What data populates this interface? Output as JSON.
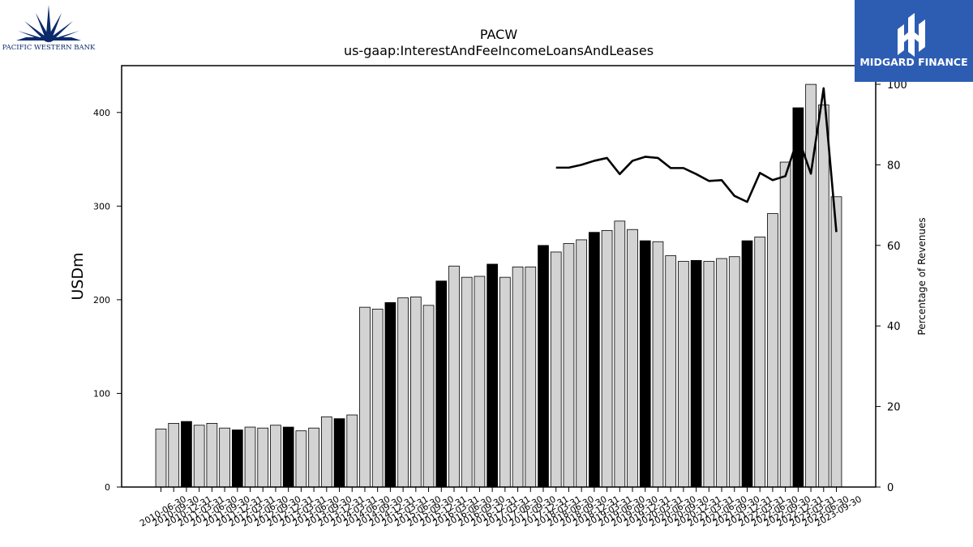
{
  "logos": {
    "left_text": "PACIFIC WESTERN BANK",
    "right_text": "MIDGARD FINANCE",
    "left_color": "#0a2a6b",
    "right_bg": "#2d5db3"
  },
  "chart_data": {
    "type": "bar",
    "title": "PACW",
    "subtitle": "us-gaap:InterestAndFeeIncomeLoansAndLeases",
    "ylabel": "USDm",
    "y2label": "Percentage of Revenues",
    "ylim": [
      0,
      450
    ],
    "y2lim": [
      0,
      100
    ],
    "yticks": [
      0,
      100,
      200,
      300,
      400
    ],
    "y2ticks": [
      0,
      20,
      40,
      60,
      80,
      100
    ],
    "grid": false,
    "bar_color": "#d3d3d3",
    "highlight_color": "#000000",
    "line_color": "#000000",
    "categories": [
      "2010-06-30",
      "2010-09-30",
      "2010-12-31",
      "2011-03-31",
      "2011-06-30",
      "2011-09-30",
      "2011-12-31",
      "2012-03-31",
      "2012-06-30",
      "2012-09-30",
      "2012-12-31",
      "2013-03-31",
      "2013-06-30",
      "2013-09-30",
      "2013-12-31",
      "2014-03-31",
      "2014-06-30",
      "2014-09-30",
      "2014-12-31",
      "2015-03-31",
      "2015-06-30",
      "2015-09-30",
      "2015-12-31",
      "2016-03-31",
      "2016-06-30",
      "2016-09-30",
      "2016-12-31",
      "2017-03-31",
      "2017-06-30",
      "2017-09-30",
      "2017-12-31",
      "2018-03-31",
      "2018-06-30",
      "2018-09-30",
      "2018-12-31",
      "2019-03-31",
      "2019-06-30",
      "2019-09-30",
      "2019-12-31",
      "2020-03-31",
      "2020-06-30",
      "2020-09-30",
      "2020-12-31",
      "2021-03-31",
      "2021-06-30",
      "2021-09-30",
      "2021-12-31",
      "2022-03-31",
      "2022-06-30",
      "2022-09-30",
      "2022-12-31",
      "2023-03-31",
      "2023-06-30",
      "2023-09-30"
    ],
    "tick_labels": [
      "2010-06-30",
      "2010-09-30",
      "2010-12-31",
      "2011-03-31",
      "2011-06-30",
      "2011-09-30",
      "2011-12-31",
      "2012-03-31",
      "2012-06-30",
      "2012-09-30",
      "2012-12-31",
      "2013-03-31",
      "2013-06-30",
      "2013-09-30",
      "2013-12-31",
      "2014-03-31",
      "2014-06-30",
      "2014-09-30",
      "2014-12-31",
      "2015-03-31",
      "2015-06-30",
      "2015-09-30",
      "2015-12-31",
      "2016-03-31",
      "2016-06-30",
      "2016-09-30",
      "2016-12-31",
      "2017-03-31",
      "2017-06-30",
      "2017-09-30",
      "2017-12-31",
      "2018-03-31",
      "2018-06-30",
      "2018-09-30",
      "2018-12-31",
      "2019-03-31",
      "2019-06-30",
      "2019-09-30",
      "2019-12-31",
      "2020-03-31",
      "2020-06-30",
      "2020-09-30",
      "2020-12-31",
      "2021-03-31",
      "2021-06-30",
      "2021-09-30",
      "2021-12-31",
      "2022-03-31",
      "2022-06-30",
      "2022-09-30",
      "2022-12-31",
      "2023-03-31",
      "2023-06-30",
      "2023-09-30"
    ],
    "highlight_indices": [
      2,
      6,
      10,
      14,
      18,
      22,
      26,
      30,
      34,
      38,
      42,
      46,
      50
    ],
    "series": [
      {
        "values": [
          62,
          68,
          70,
          66,
          68,
          63,
          61,
          64,
          63,
          66,
          64,
          60,
          63,
          75,
          73,
          77,
          192,
          190,
          197,
          202,
          203,
          194,
          220,
          236,
          224,
          225,
          238,
          224,
          235,
          235,
          258,
          251,
          260,
          264,
          272,
          274,
          284,
          275,
          263,
          262,
          247,
          241,
          242,
          241,
          244,
          246,
          263,
          267,
          292,
          347,
          405,
          430,
          408,
          310
        ]
      },
      {
        "values": [
          null,
          null,
          null,
          null,
          null,
          null,
          null,
          null,
          null,
          null,
          null,
          null,
          null,
          null,
          null,
          null,
          null,
          null,
          null,
          null,
          null,
          null,
          null,
          null,
          null,
          null,
          null,
          null,
          null,
          null,
          null,
          79.3,
          79.3,
          80,
          81,
          81.7,
          77.7,
          81,
          82,
          81.7,
          79.2,
          79.2,
          77.7,
          76,
          76.2,
          72.3,
          70.8,
          78,
          76.2,
          77.2,
          86.8,
          77.8,
          99,
          63.3
        ]
      }
    ]
  }
}
